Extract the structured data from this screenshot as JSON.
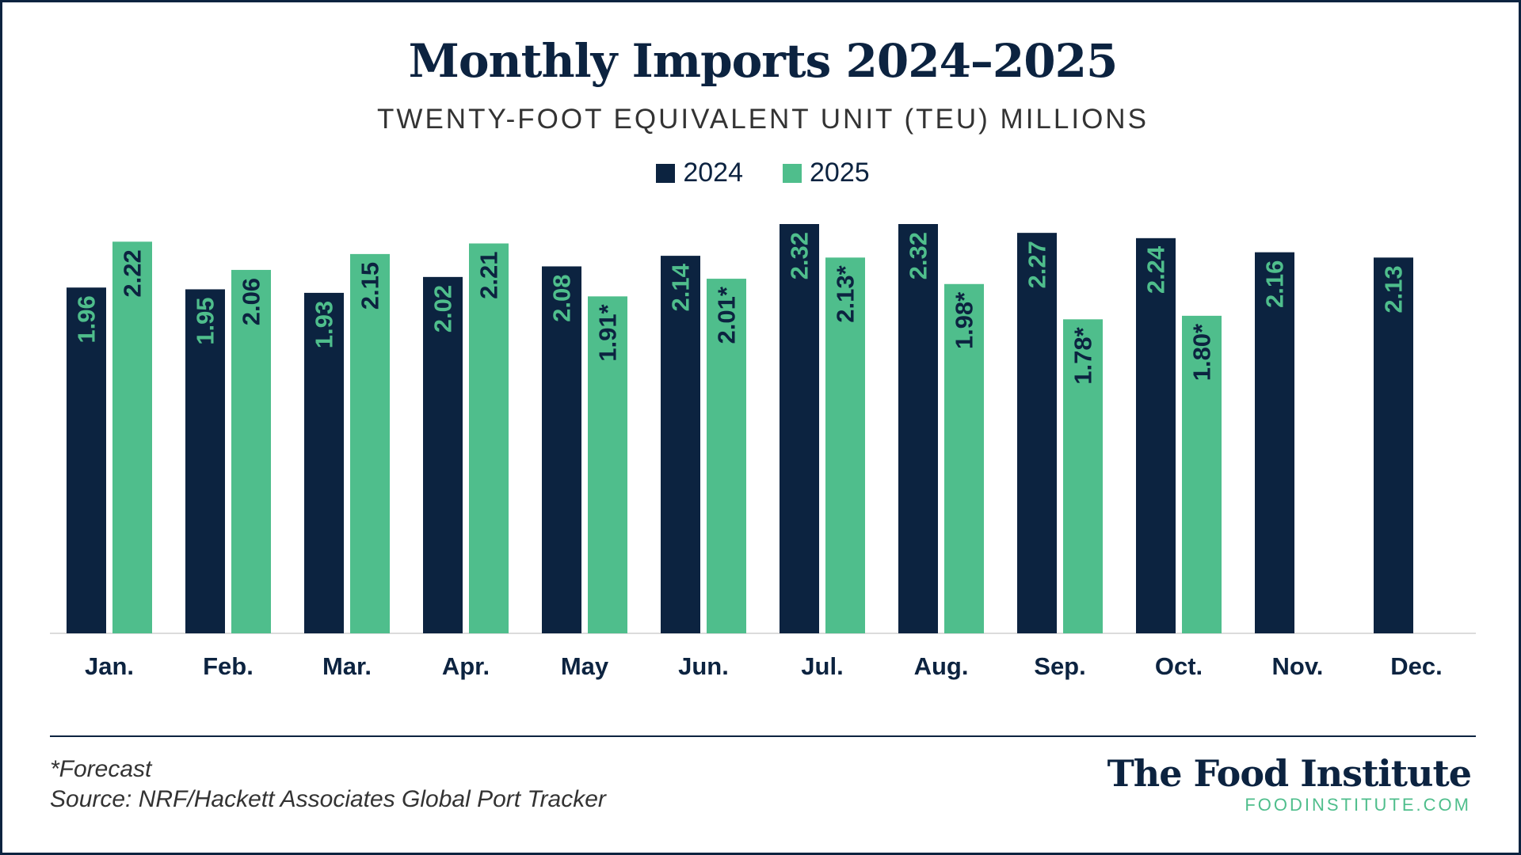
{
  "colors": {
    "series_2024": "#0c2340",
    "series_2025": "#4fbe8c",
    "label_on_dark": "#4fbe8c",
    "label_on_green": "#0c2340"
  },
  "footer": {
    "footnote": "*Forecast",
    "source": "Source: NRF/Hackett Associates Global Port Tracker"
  },
  "brand": {
    "name": "The Food Institute",
    "url": "FOODINSTITUTE.COM"
  },
  "chart_data": {
    "type": "bar",
    "title": "Monthly Imports 2024–2025",
    "subtitle": "TWENTY-FOOT EQUIVALENT UNIT (TEU) MILLIONS",
    "xlabel": "",
    "ylabel": "",
    "ylim": [
      0,
      2.32
    ],
    "grid": false,
    "legend": "top-center",
    "categories": [
      "Jan.",
      "Feb.",
      "Mar.",
      "Apr.",
      "May",
      "Jun.",
      "Jul.",
      "Aug.",
      "Sep.",
      "Oct.",
      "Nov.",
      "Dec."
    ],
    "series": [
      {
        "name": "2024",
        "values": [
          1.96,
          1.95,
          1.93,
          2.02,
          2.08,
          2.14,
          2.32,
          2.32,
          2.27,
          2.24,
          2.16,
          2.13
        ],
        "labels": [
          "1.96",
          "1.95",
          "1.93",
          "2.02",
          "2.08",
          "2.14",
          "2.32",
          "2.32",
          "2.27",
          "2.24",
          "2.16",
          "2.13"
        ]
      },
      {
        "name": "2025",
        "values": [
          2.22,
          2.06,
          2.15,
          2.21,
          1.91,
          2.01,
          2.13,
          1.98,
          1.78,
          1.8,
          null,
          null
        ],
        "labels": [
          "2.22",
          "2.06",
          "2.15",
          "2.21",
          "1.91*",
          "2.01*",
          "2.13*",
          "1.98*",
          "1.78*",
          "1.80*",
          null,
          null
        ]
      }
    ]
  }
}
